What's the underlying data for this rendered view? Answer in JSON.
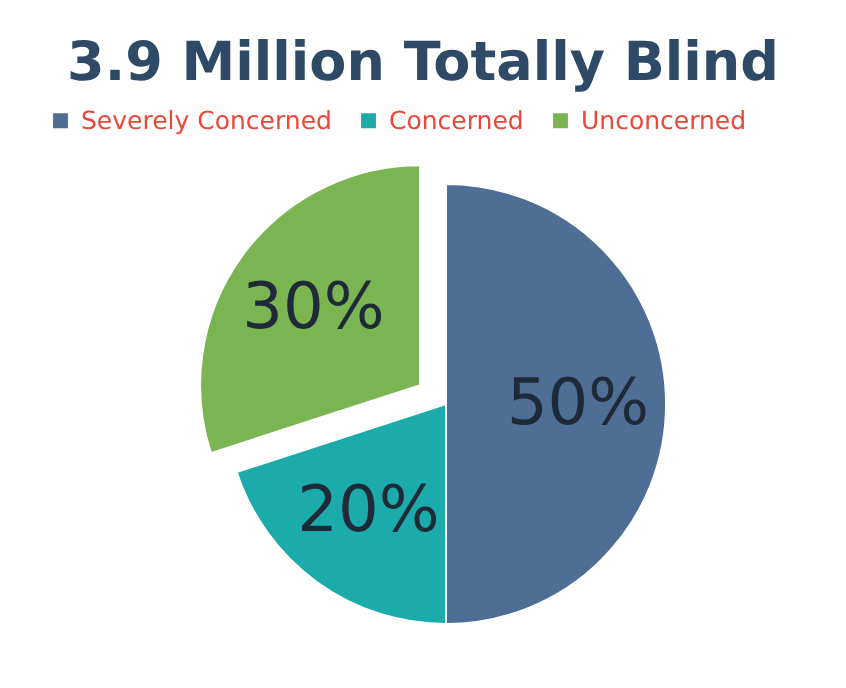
{
  "chart_data": {
    "type": "pie",
    "title": "3.9 Million Totally Blind",
    "categories": [
      "Severely Concerned",
      "Concerned",
      "Unconcerned"
    ],
    "values": [
      50,
      20,
      30
    ],
    "colors": [
      "#4e6e96",
      "#1aabaa",
      "#7ab552"
    ],
    "value_labels": [
      "50%",
      "20%",
      "30%"
    ],
    "legend": "top"
  }
}
